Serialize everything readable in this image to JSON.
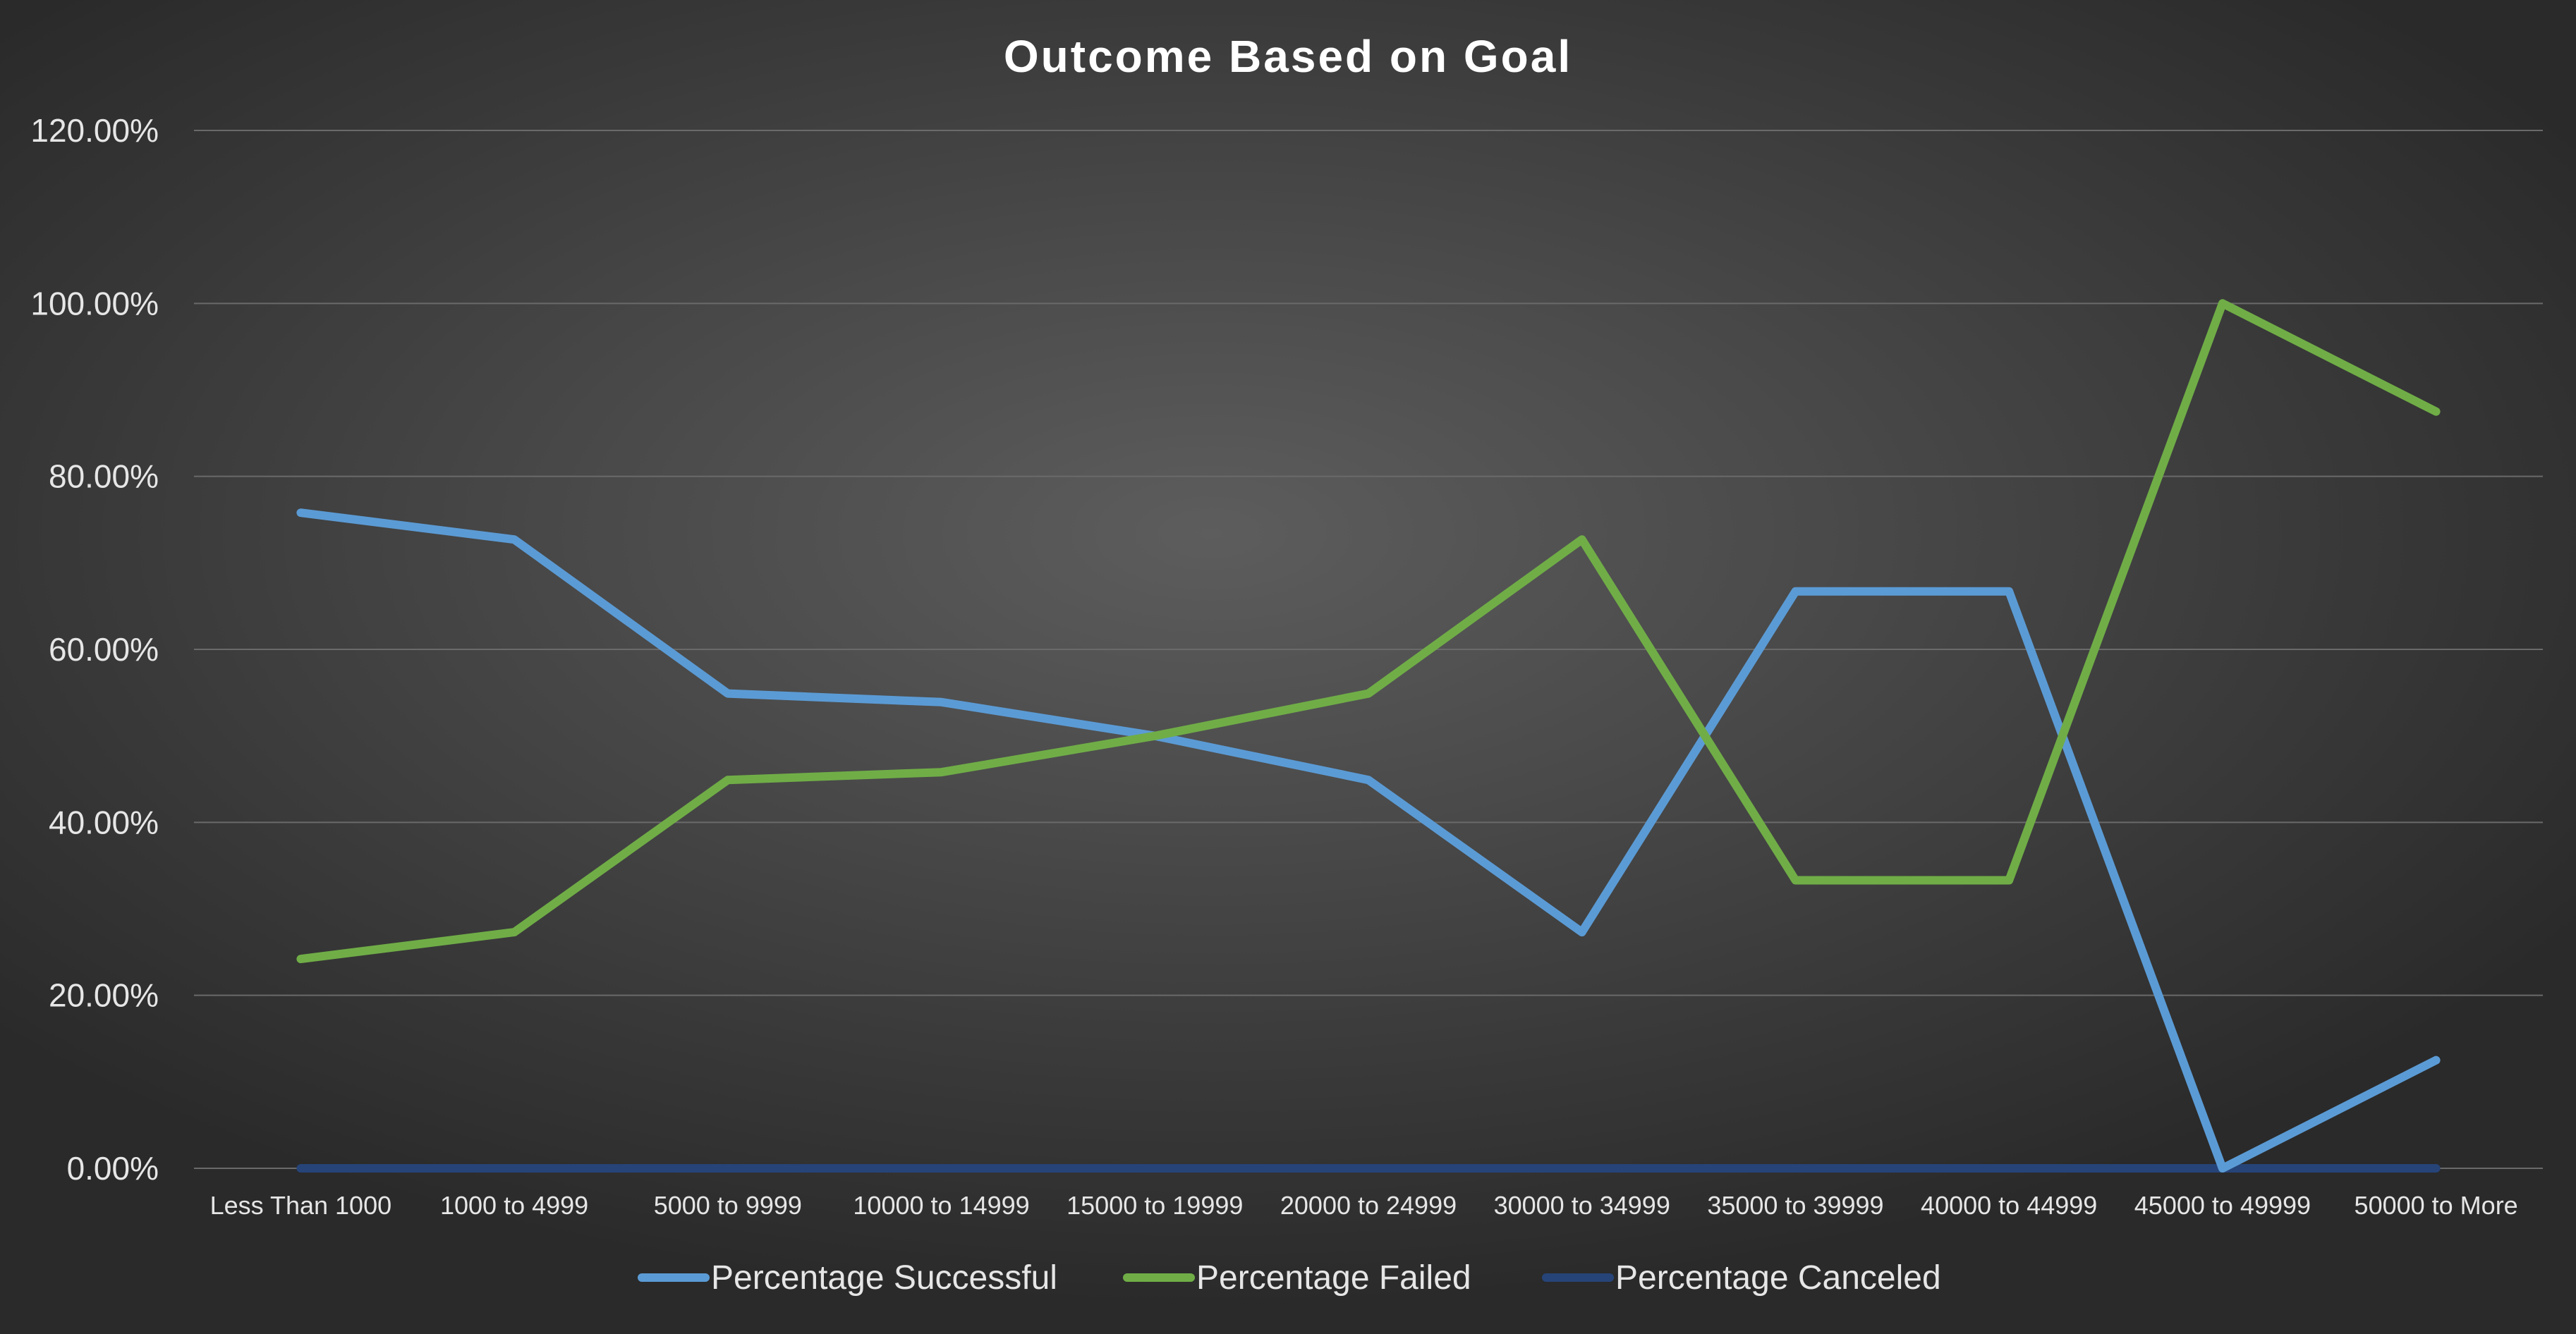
{
  "chart_data": {
    "type": "line",
    "title": "Outcome Based on Goal",
    "xlabel": "",
    "ylabel": "",
    "categories": [
      "Less Than 1000",
      "1000 to 4999",
      "5000 to 9999",
      "10000 to 14999",
      "15000 to 19999",
      "20000 to 24999",
      "30000 to 34999",
      "35000 to 39999",
      "40000 to 44999",
      "45000 to 49999",
      "50000 to More"
    ],
    "ylim": [
      0,
      1.2
    ],
    "y_ticks": [
      {
        "value": 0,
        "label": "0.00%"
      },
      {
        "value": 0.2,
        "label": "20.00%"
      },
      {
        "value": 0.4,
        "label": "40.00%"
      },
      {
        "value": 0.6,
        "label": "60.00%"
      },
      {
        "value": 0.8,
        "label": "80.00%"
      },
      {
        "value": 1.0,
        "label": "100.00%"
      },
      {
        "value": 1.2,
        "label": "120.00%"
      }
    ],
    "grid": true,
    "legend_position": "bottom",
    "series": [
      {
        "name": "Percentage Successful",
        "color": "#5b9bd5",
        "values": [
          0.758,
          0.727,
          0.549,
          0.539,
          0.5,
          0.449,
          0.273,
          0.667,
          0.667,
          0.0,
          0.125
        ]
      },
      {
        "name": "Percentage Failed",
        "color": "#70ad47",
        "values": [
          0.242,
          0.273,
          0.449,
          0.458,
          0.5,
          0.549,
          0.727,
          0.333,
          0.333,
          1.0,
          0.875
        ]
      },
      {
        "name": "Percentage Canceled",
        "color": "#264478",
        "values": [
          0,
          0,
          0,
          0,
          0,
          0,
          0,
          0,
          0,
          0,
          0
        ]
      }
    ]
  }
}
